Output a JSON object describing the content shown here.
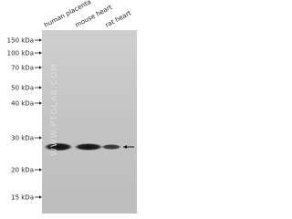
{
  "lanes": [
    "human placenta",
    "mouse heart",
    "rat heart"
  ],
  "markers": [
    "150 kDa",
    "100 kDa",
    "70 kDa",
    "50 kDa",
    "40 kDa",
    "30 kDa",
    "20 kDa",
    "15 kDa"
  ],
  "watermark": "WWW.PTGLAB.COM"
}
